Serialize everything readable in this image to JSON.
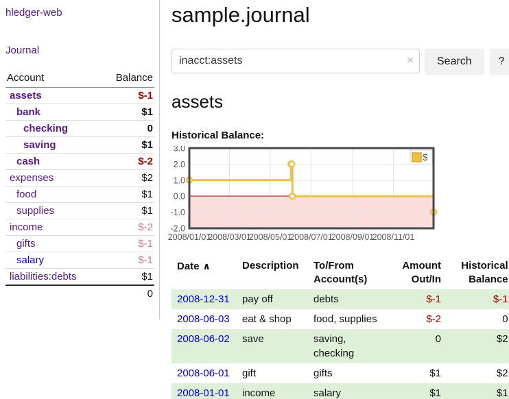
{
  "sidebar": {
    "brand": "hledger-web",
    "nav": {
      "journal_label": "Journal"
    },
    "accounts_table": {
      "headers": {
        "account": "Account",
        "balance": "Balance"
      },
      "rows": [
        {
          "account": "assets",
          "balance": "$-1",
          "depth": 1,
          "bold": true,
          "account_color": "purple",
          "balance_color": "neg-strong"
        },
        {
          "account": "bank",
          "balance": "$1",
          "depth": 2,
          "bold": true,
          "account_color": "purple",
          "balance_color": "normal"
        },
        {
          "account": "checking",
          "balance": "0",
          "depth": 3,
          "bold": true,
          "account_color": "purple",
          "balance_color": "normal"
        },
        {
          "account": "saving",
          "balance": "$1",
          "depth": 3,
          "bold": true,
          "account_color": "purple",
          "balance_color": "normal"
        },
        {
          "account": "cash",
          "balance": "$-2",
          "depth": 2,
          "bold": true,
          "account_color": "purple",
          "balance_color": "neg-strong"
        },
        {
          "account": "expenses",
          "balance": "$2",
          "depth": 1,
          "bold": false,
          "account_color": "purple",
          "balance_color": "normal"
        },
        {
          "account": "food",
          "balance": "$1",
          "depth": 2,
          "bold": false,
          "account_color": "purple",
          "balance_color": "normal"
        },
        {
          "account": "supplies",
          "balance": "$1",
          "depth": 2,
          "bold": false,
          "account_color": "purple",
          "balance_color": "normal"
        },
        {
          "account": "income",
          "balance": "$-2",
          "depth": 1,
          "bold": false,
          "account_color": "purple",
          "balance_color": "neg-muted"
        },
        {
          "account": "gifts",
          "balance": "$-1",
          "depth": 2,
          "bold": false,
          "account_color": "purple",
          "balance_color": "neg-muted"
        },
        {
          "account": "salary",
          "balance": "$-1",
          "depth": 2,
          "bold": false,
          "account_color": "blue",
          "balance_color": "neg-muted"
        },
        {
          "account": "liabilities:debts",
          "balance": "$1",
          "depth": 1,
          "bold": false,
          "account_color": "purple",
          "balance_color": "normal"
        }
      ],
      "total": "0"
    }
  },
  "header": {
    "title": "sample.journal"
  },
  "search": {
    "query": "inacct:assets",
    "clear_icon": "×",
    "button_label": "Search",
    "help_label": "?"
  },
  "account_page": {
    "heading": "assets",
    "chart_label": "Historical Balance:"
  },
  "chart_data": {
    "type": "line",
    "step": true,
    "title": "Historical Balance:",
    "series": [
      {
        "name": "$",
        "color": "#edc240",
        "points": [
          [
            "2008-01-01",
            1.0
          ],
          [
            "2008-06-01",
            2.0
          ],
          [
            "2008-06-02",
            2.0
          ],
          [
            "2008-06-03",
            0.0
          ],
          [
            "2008-12-31",
            -1.0
          ]
        ]
      }
    ],
    "x_range": [
      "2008-01-01",
      "2008-12-31"
    ],
    "x_tick_labels": [
      "2008/01/01",
      "2008/03/01",
      "2008/05/01",
      "2008/07/01",
      "2008/09/01",
      "2008/11/01"
    ],
    "y_tick_labels": [
      "3.0",
      "2.0",
      "1.0",
      "0.0",
      "-1.0",
      "-2.0"
    ],
    "ylim": [
      -2.0,
      3.0
    ],
    "grid": true,
    "legend": {
      "position": "top-right",
      "label": "$"
    },
    "negative_region_fill": "#fcdddd",
    "zero_line_color": "#8b0000",
    "grid_color": "#e5e5e5",
    "plot_border_color": "#484848",
    "axis_text_color": "#545454"
  },
  "register_table": {
    "headers": {
      "date": "Date",
      "sort_asc_icon": "∧",
      "description": "Description",
      "tofrom": "To/From\nAccount(s)",
      "amount": "Amount\nOut/In",
      "historical": "Historical\nBalance"
    },
    "rows": [
      {
        "date": "2008-12-31",
        "description": "pay off",
        "accounts": "debts",
        "amount": "$-1",
        "amount_negative": true,
        "balance": "$-1",
        "balance_negative": true,
        "shaded": true
      },
      {
        "date": "2008-06-03",
        "description": "eat & shop",
        "accounts": "food, supplies",
        "amount": "$-2",
        "amount_negative": true,
        "balance": "0",
        "balance_negative": false,
        "shaded": false
      },
      {
        "date": "2008-06-02",
        "description": "save",
        "accounts": "saving, checking",
        "amount": "0",
        "amount_negative": false,
        "balance": "$2",
        "balance_negative": false,
        "shaded": true
      },
      {
        "date": "2008-06-01",
        "description": "gift",
        "accounts": "gifts",
        "amount": "$1",
        "amount_negative": false,
        "balance": "$2",
        "balance_negative": false,
        "shaded": false
      },
      {
        "date": "2008-01-01",
        "description": "income",
        "accounts": "salary",
        "amount": "$1",
        "amount_negative": false,
        "balance": "$1",
        "balance_negative": false,
        "shaded": true
      }
    ]
  },
  "colors": {
    "link_purple": "#551a8b",
    "link_blue": "#0000e6",
    "negative_strong": "#a40000",
    "negative_muted": "#c08080",
    "row_shade_green": "#dff0d8",
    "series_yellow": "#edc240"
  }
}
